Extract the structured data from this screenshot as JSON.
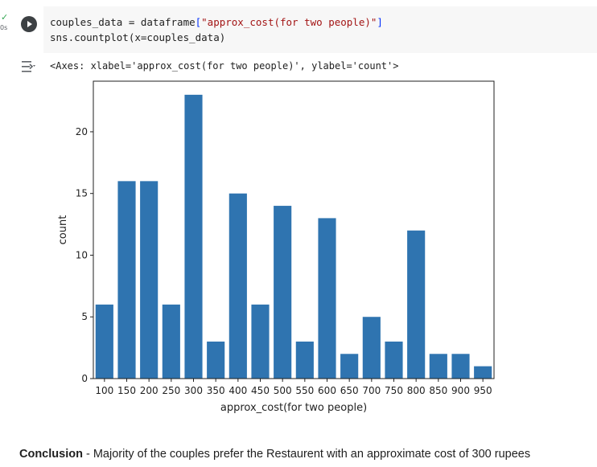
{
  "cell": {
    "status_icon": "check-icon",
    "exec_time": "0s",
    "run_icon": "play-icon",
    "code_line1": {
      "var": "couples_data = dataframe",
      "open": "[",
      "str": "\"approx_cost(for two people)\"",
      "close": "]"
    },
    "code_line2": {
      "call": "sns.countplot",
      "args": "(x=couples_data)"
    }
  },
  "output": {
    "icon": "output-toggle-icon",
    "repr": "<Axes: xlabel='approx_cost(for two people)', ylabel='count'>"
  },
  "chart_data": {
    "type": "bar",
    "categories": [
      "100",
      "150",
      "200",
      "250",
      "300",
      "350",
      "400",
      "450",
      "500",
      "550",
      "600",
      "650",
      "700",
      "750",
      "800",
      "850",
      "900",
      "950"
    ],
    "values": [
      6,
      16,
      16,
      6,
      23,
      3,
      15,
      6,
      14,
      3,
      13,
      2,
      5,
      3,
      12,
      2,
      2,
      1
    ],
    "title": "",
    "xlabel": "approx_cost(for two people)",
    "ylabel": "count",
    "ylim": [
      0,
      23
    ],
    "yticks": [
      "0",
      "5",
      "10",
      "15",
      "20"
    ],
    "bar_color": "#2f74b0",
    "grid": false
  },
  "conclusion": {
    "label": "Conclusion",
    "text": " - Majority of the couples prefer the Restaurent with an approximate cost of 300 rupees"
  }
}
